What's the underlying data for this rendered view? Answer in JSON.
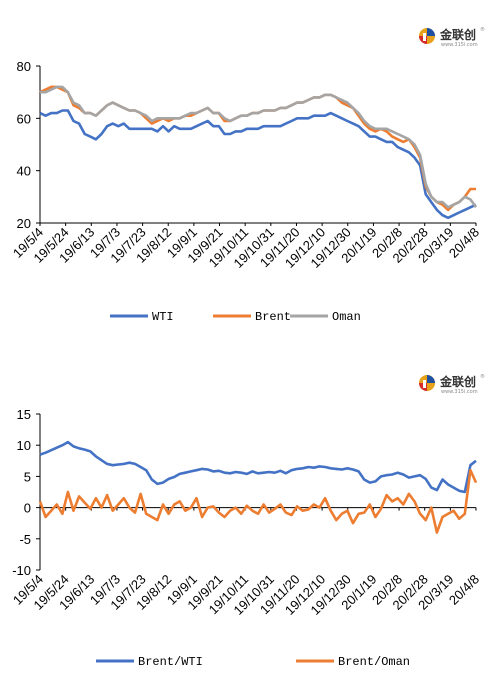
{
  "logo": {
    "text": "金联创",
    "sub": "www.315i.com",
    "mark": "®"
  },
  "colors": {
    "wti": "#4472c4",
    "brent": "#ed7d31",
    "oman": "#a5a5a5"
  },
  "chart_data": [
    {
      "type": "line",
      "title": "",
      "xlabel": "",
      "ylabel": "",
      "ylim": [
        20,
        80
      ],
      "yticks": [
        20,
        40,
        60,
        80
      ],
      "grid": false,
      "legend": "bottom",
      "x_tick_labels": [
        "19/5/4",
        "19/5/24",
        "19/6/13",
        "19/7/3",
        "19/7/23",
        "19/8/12",
        "19/9/1",
        "19/9/21",
        "19/10/11",
        "19/10/31",
        "19/11/20",
        "19/12/10",
        "19/12/30",
        "20/1/19",
        "20/2/8",
        "20/2/28",
        "20/3/19",
        "20/4/8"
      ],
      "series": [
        {
          "name": "WTI",
          "color": "#4472c4",
          "values": [
            62,
            61,
            62,
            62,
            63,
            63,
            59,
            58,
            54,
            53,
            52,
            54,
            57,
            58,
            57,
            58,
            56,
            56,
            56,
            56,
            56,
            55,
            57,
            55,
            57,
            56,
            56,
            56,
            57,
            58,
            59,
            57,
            57,
            54,
            54,
            55,
            55,
            56,
            56,
            56,
            57,
            57,
            57,
            57,
            58,
            59,
            60,
            60,
            60,
            61,
            61,
            61,
            62,
            61,
            60,
            59,
            58,
            57,
            55,
            53,
            53,
            52,
            51,
            51,
            49,
            48,
            47,
            45,
            42,
            31,
            28,
            25,
            23,
            22,
            23,
            24,
            25,
            26,
            27
          ]
        },
        {
          "name": "Brent",
          "color": "#ed7d31",
          "values": [
            70,
            71,
            72,
            72,
            71,
            70,
            65,
            64,
            62,
            62,
            61,
            63,
            65,
            66,
            65,
            64,
            63,
            63,
            62,
            60,
            58,
            59,
            60,
            59,
            60,
            60,
            61,
            61,
            62,
            63,
            64,
            62,
            62,
            59,
            59,
            60,
            61,
            61,
            62,
            62,
            63,
            63,
            63,
            64,
            64,
            65,
            66,
            66,
            67,
            68,
            68,
            69,
            69,
            68,
            66,
            65,
            64,
            61,
            58,
            56,
            55,
            56,
            55,
            53,
            52,
            51,
            52,
            49,
            45,
            34,
            30,
            28,
            27,
            25,
            27,
            28,
            30,
            33,
            33
          ]
        },
        {
          "name": "Oman",
          "color": "#a5a5a5",
          "values": [
            70,
            70,
            71,
            72,
            72,
            70,
            66,
            65,
            62,
            62,
            61,
            63,
            65,
            66,
            65,
            64,
            63,
            63,
            62,
            61,
            59,
            60,
            60,
            60,
            60,
            60,
            61,
            62,
            62,
            63,
            64,
            62,
            62,
            60,
            59,
            60,
            61,
            61,
            62,
            62,
            63,
            63,
            63,
            64,
            64,
            65,
            66,
            66,
            67,
            68,
            68,
            69,
            69,
            68,
            67,
            66,
            64,
            62,
            59,
            57,
            56,
            56,
            56,
            55,
            54,
            53,
            52,
            50,
            46,
            35,
            30,
            28,
            28,
            26,
            27,
            28,
            30,
            29,
            26
          ]
        }
      ]
    },
    {
      "type": "line",
      "title": "",
      "xlabel": "",
      "ylabel": "",
      "ylim": [
        -10,
        15
      ],
      "yticks": [
        -10,
        -5,
        0,
        5,
        10,
        15
      ],
      "grid": false,
      "legend": "bottom",
      "x_tick_labels": [
        "19/5/4",
        "19/5/24",
        "19/6/13",
        "19/7/3",
        "19/7/23",
        "19/8/12",
        "19/9/1",
        "19/9/21",
        "19/10/11",
        "19/10/31",
        "19/11/20",
        "19/12/10",
        "19/12/30",
        "20/1/19",
        "20/2/8",
        "20/2/28",
        "20/3/19",
        "20/4/8"
      ],
      "series": [
        {
          "name": "Brent/WTI",
          "color": "#4472c4",
          "values": [
            8.5,
            8.8,
            9.2,
            9.6,
            10.0,
            10.5,
            9.8,
            9.5,
            9.3,
            9.0,
            8.2,
            7.6,
            7.0,
            6.8,
            6.9,
            7.0,
            7.2,
            7.0,
            6.5,
            6.0,
            4.5,
            3.8,
            4.0,
            4.6,
            4.9,
            5.4,
            5.6,
            5.8,
            6.0,
            6.2,
            6.1,
            5.8,
            5.9,
            5.6,
            5.5,
            5.7,
            5.6,
            5.4,
            5.8,
            5.5,
            5.6,
            5.7,
            5.6,
            5.9,
            5.5,
            6.0,
            6.2,
            6.3,
            6.5,
            6.4,
            6.6,
            6.5,
            6.3,
            6.2,
            6.1,
            6.3,
            6.1,
            5.8,
            4.5,
            4.0,
            4.2,
            5.0,
            5.2,
            5.3,
            5.6,
            5.3,
            4.8,
            5.0,
            5.2,
            4.6,
            3.2,
            2.8,
            4.5,
            3.7,
            3.2,
            2.7,
            2.5,
            6.8,
            7.5
          ]
        },
        {
          "name": "Brent/Oman",
          "color": "#ed7d31",
          "values": [
            1.0,
            -1.5,
            -0.5,
            0.5,
            -1.0,
            2.5,
            -0.5,
            1.8,
            0.8,
            -0.2,
            1.5,
            0.0,
            2.0,
            -0.5,
            0.5,
            1.5,
            0.0,
            -0.8,
            2.2,
            -1.0,
            -1.5,
            -2.0,
            0.5,
            -1.0,
            0.5,
            1.0,
            -0.5,
            0.0,
            1.5,
            -1.5,
            0.0,
            0.2,
            -0.8,
            -1.5,
            -0.5,
            0.0,
            -1.0,
            0.3,
            -0.5,
            -1.0,
            0.5,
            -0.8,
            -0.2,
            0.5,
            -0.8,
            -1.2,
            0.2,
            -0.5,
            -0.3,
            0.5,
            0.0,
            1.5,
            -0.5,
            -2.0,
            -1.0,
            -0.5,
            -2.5,
            -1.0,
            -0.8,
            0.5,
            -1.5,
            -0.2,
            2.0,
            1.0,
            1.5,
            0.5,
            2.2,
            1.0,
            -1.0,
            -2.0,
            0.0,
            -4.0,
            -1.5,
            -1.0,
            -0.5,
            -1.8,
            -1.0,
            6.0,
            4.0
          ]
        }
      ]
    }
  ]
}
